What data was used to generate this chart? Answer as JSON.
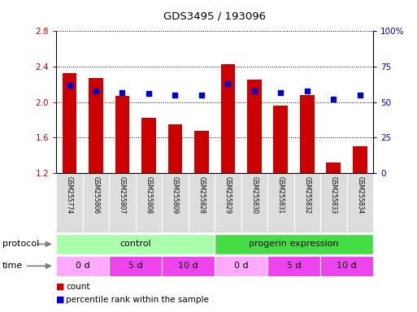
{
  "title": "GDS3495 / 193096",
  "samples": [
    "GSM255774",
    "GSM255806",
    "GSM255807",
    "GSM255808",
    "GSM255809",
    "GSM255828",
    "GSM255829",
    "GSM255830",
    "GSM255831",
    "GSM255832",
    "GSM255833",
    "GSM255834"
  ],
  "bar_values": [
    2.33,
    2.27,
    2.07,
    1.82,
    1.75,
    1.68,
    2.43,
    2.25,
    1.96,
    2.08,
    1.32,
    1.5
  ],
  "dot_values": [
    62,
    58,
    57,
    56,
    55,
    55,
    63,
    58,
    57,
    58,
    52,
    55
  ],
  "ylim_left": [
    1.2,
    2.8
  ],
  "ylim_right": [
    0,
    100
  ],
  "yticks_left": [
    1.2,
    1.6,
    2.0,
    2.4,
    2.8
  ],
  "yticks_right": [
    0,
    25,
    50,
    75,
    100
  ],
  "bar_color": "#cc0000",
  "dot_color": "#0000cc",
  "protocol_control_label": "control",
  "protocol_progerin_label": "progerin expression",
  "protocol_color_light": "#aaffaa",
  "protocol_color_dark": "#44dd44",
  "time_color_light": "#ffaaff",
  "time_color_purple": "#ee44ee",
  "legend_count": "count",
  "legend_pct": "percentile rank within the sample",
  "sample_bg_color": "#dddddd",
  "right_tick_labels": [
    "0",
    "25",
    "50",
    "75",
    "100%"
  ]
}
